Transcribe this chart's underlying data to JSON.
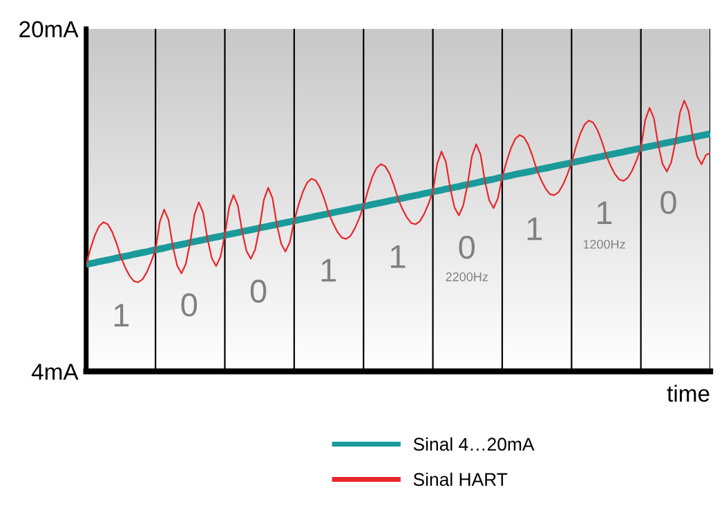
{
  "chart_data": {
    "type": "line",
    "xlabel": "time",
    "categories": [
      null,
      null,
      null,
      null,
      null,
      null,
      null,
      null,
      null,
      null,
      null,
      null,
      null,
      null,
      null,
      null,
      null,
      null,
      null,
      null,
      null,
      null,
      null,
      null,
      null,
      null,
      null,
      null,
      null,
      null,
      null,
      null,
      null,
      null,
      null,
      null,
      null,
      null,
      null,
      null,
      null,
      null,
      null,
      null,
      null,
      null,
      null,
      null,
      null,
      null,
      null,
      null,
      null,
      null,
      null,
      null,
      null,
      null,
      null,
      null,
      null,
      null,
      null,
      null,
      null,
      null,
      null,
      null,
      null,
      null,
      null,
      null,
      null,
      null,
      null,
      null,
      null,
      null,
      null,
      null,
      null,
      null,
      null,
      null,
      null,
      null,
      null,
      null,
      null,
      null,
      null,
      null,
      null,
      null,
      null,
      null,
      null,
      null,
      null,
      null,
      null,
      null,
      null,
      null,
      null,
      null,
      null,
      null,
      null,
      null,
      null,
      null,
      null,
      null,
      null,
      null,
      null,
      null,
      null,
      null,
      null,
      null,
      null,
      null,
      null,
      null,
      null,
      null,
      null,
      null,
      null,
      null,
      null,
      null,
      null,
      null,
      null,
      null,
      null,
      null,
      null,
      null,
      null,
      null,
      null
    ],
    "ylim": [
      4,
      20
    ],
    "yticks": [
      {
        "value": 4,
        "label": "4mA"
      },
      {
        "value": 20,
        "label": "20mA"
      }
    ],
    "tick_labels": "y",
    "grid": "x",
    "legend": "bottom",
    "series": [
      {
        "name": "Sinal 4…20mA",
        "color": "#1a9a9a",
        "values": [
          9.0,
          9.04,
          9.08,
          9.13,
          9.17,
          9.21,
          9.25,
          9.3,
          9.34,
          9.38,
          9.42,
          9.47,
          9.51,
          9.55,
          9.59,
          9.64,
          9.68,
          9.72,
          9.76,
          9.81,
          9.85,
          9.89,
          9.93,
          9.97,
          10.02,
          10.06,
          10.1,
          10.14,
          10.19,
          10.23,
          10.27,
          10.31,
          10.36,
          10.4,
          10.44,
          10.48,
          10.53,
          10.57,
          10.61,
          10.65,
          10.7,
          10.74,
          10.78,
          10.82,
          10.86,
          10.91,
          10.95,
          10.99,
          11.03,
          11.08,
          11.12,
          11.16,
          11.2,
          11.25,
          11.29,
          11.33,
          11.37,
          11.42,
          11.46,
          11.5,
          11.54,
          11.58,
          11.63,
          11.67,
          11.71,
          11.75,
          11.8,
          11.84,
          11.88,
          11.92,
          11.97,
          12.01,
          12.05,
          12.09,
          12.14,
          12.18,
          12.22,
          12.26,
          12.31,
          12.35,
          12.39,
          12.43,
          12.47,
          12.52,
          12.56,
          12.6,
          12.64,
          12.69,
          12.73,
          12.77,
          12.81,
          12.86,
          12.9,
          12.94,
          12.98,
          13.03,
          13.07,
          13.11,
          13.15,
          13.2,
          13.24,
          13.28,
          13.32,
          13.36,
          13.41,
          13.45,
          13.49,
          13.53,
          13.58,
          13.62,
          13.66,
          13.7,
          13.75,
          13.79,
          13.83,
          13.87,
          13.92,
          13.96,
          14.0,
          14.04,
          14.09,
          14.13,
          14.17,
          14.21,
          14.25,
          14.3,
          14.34,
          14.38,
          14.42,
          14.47,
          14.51,
          14.55,
          14.59,
          14.64,
          14.68,
          14.72,
          14.76,
          14.81,
          14.85,
          14.89,
          14.93,
          14.98,
          15.02,
          15.06,
          15.1
        ]
      },
      {
        "name": "Sinal HART",
        "color": "#e8262a",
        "values": [
          9.0,
          9.73,
          10.35,
          10.79,
          10.97,
          10.87,
          10.52,
          9.99,
          9.34,
          8.86,
          8.47,
          8.22,
          8.16,
          8.3,
          8.64,
          9.12,
          9.68,
          10.99,
          11.56,
          11.08,
          9.85,
          8.94,
          8.58,
          9.02,
          10.02,
          11.33,
          11.9,
          11.41,
          10.19,
          9.28,
          8.92,
          9.36,
          10.36,
          11.67,
          12.24,
          11.75,
          10.53,
          9.62,
          9.26,
          9.7,
          10.7,
          12.01,
          12.58,
          12.09,
          10.86,
          9.96,
          9.6,
          10.04,
          11.03,
          11.77,
          12.39,
          12.82,
          13.0,
          12.91,
          12.56,
          12.02,
          11.37,
          10.9,
          10.51,
          10.25,
          10.19,
          10.33,
          10.68,
          11.15,
          11.71,
          12.44,
          13.07,
          13.5,
          13.68,
          13.58,
          13.24,
          12.7,
          12.05,
          11.57,
          11.19,
          10.93,
          10.87,
          11.01,
          11.36,
          11.83,
          12.39,
          13.7,
          14.27,
          13.79,
          12.56,
          11.65,
          11.29,
          11.74,
          12.73,
          14.04,
          14.61,
          14.13,
          12.9,
          11.99,
          11.63,
          12.08,
          13.07,
          13.8,
          14.42,
          14.86,
          15.04,
          14.94,
          14.59,
          14.05,
          13.41,
          12.93,
          12.54,
          12.28,
          12.23,
          12.37,
          12.71,
          13.18,
          13.75,
          14.48,
          15.1,
          15.53,
          15.72,
          15.62,
          15.27,
          14.73,
          14.09,
          13.61,
          13.22,
          12.96,
          12.9,
          13.05,
          13.39,
          13.86,
          14.42,
          15.74,
          16.31,
          15.82,
          14.59,
          13.69,
          13.33,
          13.77,
          14.76,
          16.08,
          16.65,
          16.16,
          14.93,
          14.03,
          13.67,
          14.11,
          14.2
        ]
      }
    ],
    "annotations": [
      "1",
      "0",
      "0",
      "1",
      "1",
      "0",
      "2200Hz",
      "1",
      "1",
      "1200Hz",
      "0"
    ]
  }
}
